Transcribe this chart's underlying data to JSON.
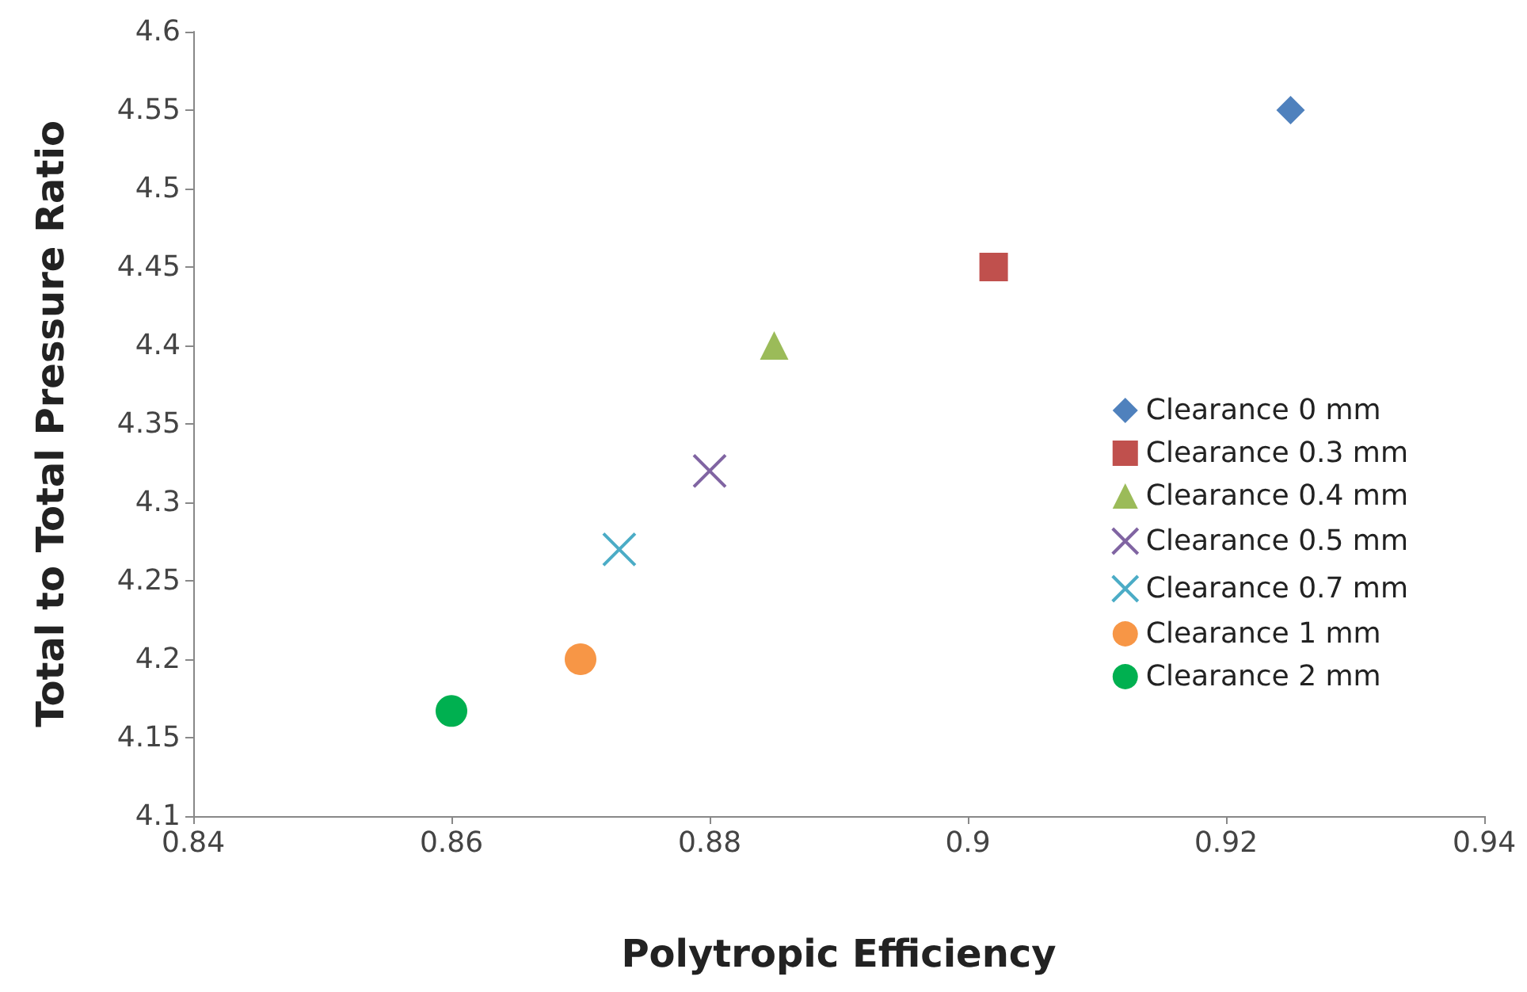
{
  "chart_data": {
    "type": "scatter",
    "xlabel": "Polytropic Efficiency",
    "ylabel": "Total to Total Pressure Ratio",
    "xlim": [
      0.84,
      0.94
    ],
    "xticks": [
      0.84,
      0.86,
      0.88,
      0.9,
      0.92,
      0.94
    ],
    "ylim": [
      4.1,
      4.6
    ],
    "yticks": [
      4.1,
      4.15,
      4.2,
      4.25,
      4.3,
      4.35,
      4.4,
      4.45,
      4.5,
      4.55,
      4.6
    ],
    "grid": false,
    "legend": "right",
    "series": [
      {
        "name": "Clearance 0 mm",
        "color": "#4f81bd",
        "marker": "diamond",
        "x": [
          0.925
        ],
        "values": [
          4.55
        ]
      },
      {
        "name": "Clearance 0.3 mm",
        "color": "#c0504d",
        "marker": "square",
        "x": [
          0.902
        ],
        "values": [
          4.45
        ]
      },
      {
        "name": "Clearance 0.4 mm",
        "color": "#9bbb59",
        "marker": "triangle",
        "x": [
          0.885
        ],
        "values": [
          4.4
        ]
      },
      {
        "name": "Clearance 0.5 mm",
        "color": "#8064a2",
        "marker": "cross",
        "x": [
          0.88
        ],
        "values": [
          4.32
        ]
      },
      {
        "name": "Clearance 0.7 mm",
        "color": "#4bacc6",
        "marker": "cross",
        "x": [
          0.873
        ],
        "values": [
          4.27
        ]
      },
      {
        "name": "Clearance 1 mm",
        "color": "#f79646",
        "marker": "circle",
        "x": [
          0.87
        ],
        "values": [
          4.2
        ]
      },
      {
        "name": "Clearance 2 mm",
        "color": "#00b050",
        "marker": "circle",
        "x": [
          0.86
        ],
        "values": [
          4.167
        ]
      }
    ]
  }
}
